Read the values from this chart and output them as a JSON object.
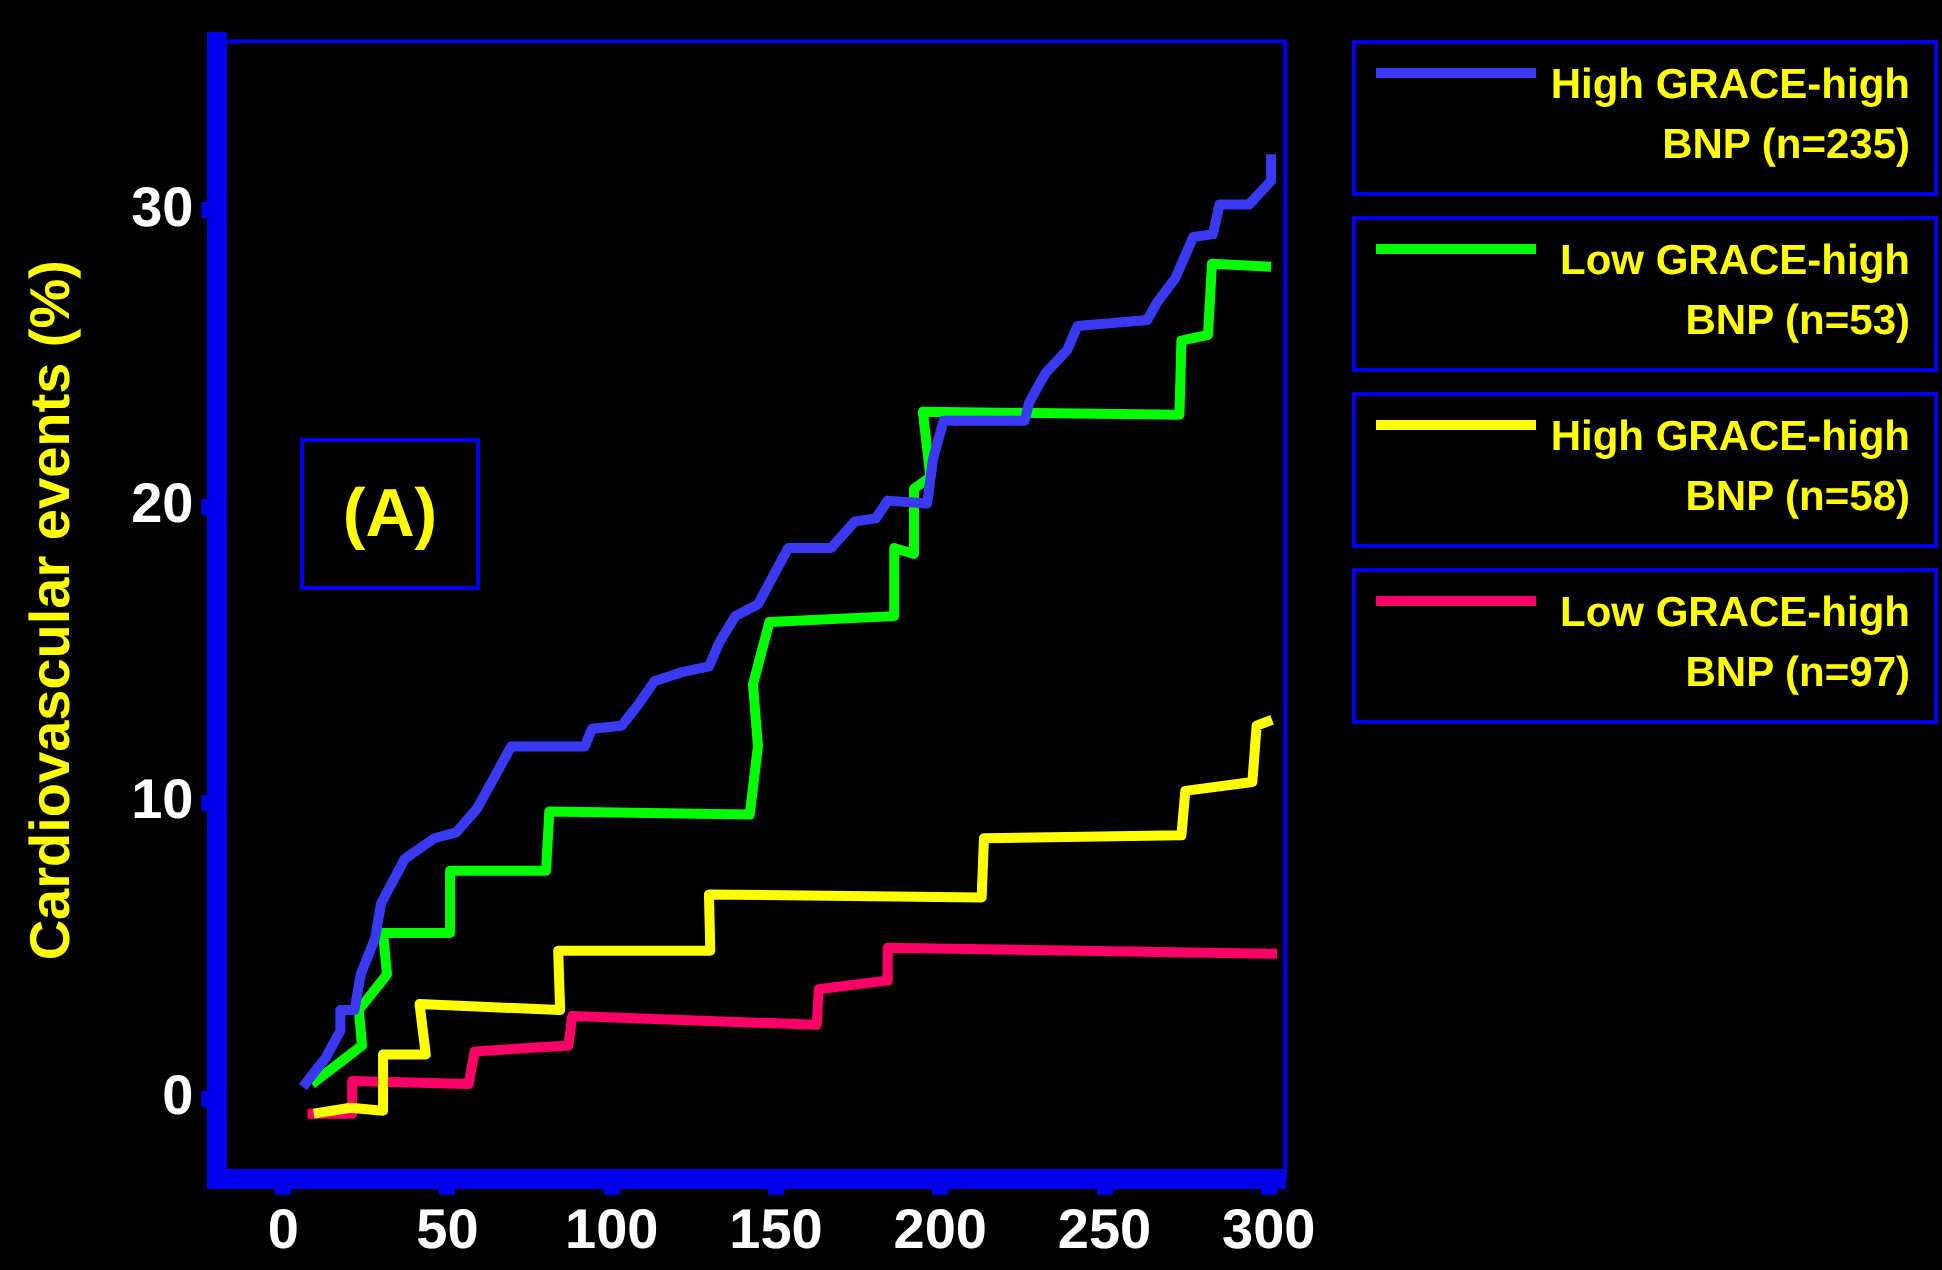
{
  "chart_data": {
    "type": "line",
    "ylabel": "Cardiovascular events (%)",
    "annotations": [
      "(A)"
    ],
    "xlim": [
      -20,
      305
    ],
    "ylim": [
      -2.7,
      35.7
    ],
    "xticks": [
      0,
      50,
      100,
      150,
      200,
      250,
      300
    ],
    "yticks": [
      0,
      10,
      20,
      30
    ],
    "grid": false,
    "legend": "right",
    "marker": "none",
    "line_style": "solid",
    "series": [
      {
        "name": "High GRACE-high BNP (n=235)",
        "color": "#3a3af5",
        "x": [
          6,
          13,
          17.4,
          17.4,
          21.7,
          23.6,
          27.9,
          29.8,
          37,
          46,
          52.7,
          59,
          69.4,
          91.8,
          94,
          103,
          108,
          113,
          121,
          129.6,
          132.7,
          137.6,
          144.5,
          153.7,
          166.8,
          174,
          180.4,
          184,
          196,
          197.8,
          201,
          225.7,
          227,
          232,
          238.7,
          241.8,
          263,
          266,
          271.5,
          277,
          283,
          285,
          294,
          300.7,
          300.7
        ],
        "values": [
          0.4,
          1.4,
          2.3,
          3.0,
          3.0,
          4.2,
          5.4,
          6.6,
          8.1,
          8.8,
          9.0,
          9.8,
          11.9,
          11.9,
          12.5,
          12.6,
          13.3,
          14.1,
          14.4,
          14.6,
          15.4,
          16.3,
          16.7,
          18.6,
          18.6,
          19.5,
          19.6,
          20.2,
          20.1,
          21.6,
          22.9,
          22.9,
          23.5,
          24.5,
          25.3,
          26.1,
          26.3,
          26.9,
          27.7,
          29.1,
          29.2,
          30.2,
          30.2,
          31.0,
          31.9
        ]
      },
      {
        "name": "Low GRACE-high BNP (n=53)",
        "color": "#00ff00",
        "x": [
          8.7,
          24,
          23,
          31.6,
          30.4,
          50.8,
          50.8,
          80,
          81,
          142,
          144.5,
          143,
          148,
          186,
          186,
          192,
          192,
          197,
          194.7,
          272.8,
          273.4,
          281.5,
          282.7,
          300.7
        ],
        "values": [
          0.5,
          1.8,
          3.0,
          4.2,
          5.6,
          5.6,
          7.7,
          7.7,
          9.7,
          9.6,
          11.9,
          14.0,
          16.1,
          16.3,
          18.6,
          18.4,
          20.6,
          21.0,
          23.2,
          23.1,
          25.6,
          25.8,
          28.2,
          28.1
        ]
      },
      {
        "name": "High GRACE-high BNP (n=58)",
        "color": "#ffff00",
        "x": [
          9.3,
          20.5,
          30.4,
          30.4,
          43.4,
          41.5,
          84.3,
          83.7,
          130,
          129.6,
          212.6,
          213.3,
          273.4,
          274.6,
          295,
          296.3,
          301
        ],
        "values": [
          -0.5,
          -0.3,
          -0.4,
          1.5,
          1.5,
          3.2,
          3.0,
          5.0,
          5.0,
          6.9,
          6.8,
          8.8,
          8.9,
          10.4,
          10.7,
          12.6,
          12.8
        ]
      },
      {
        "name": "Low GRACE-high BNP (n=97)",
        "color": "#ff0066",
        "x": [
          7.4,
          21,
          21,
          56.4,
          58.3,
          86.8,
          88,
          162.4,
          163,
          184,
          184,
          302.5
        ],
        "values": [
          -0.5,
          -0.5,
          0.6,
          0.5,
          1.6,
          1.8,
          2.8,
          2.5,
          3.7,
          4.0,
          5.1,
          4.9
        ]
      }
    ]
  }
}
